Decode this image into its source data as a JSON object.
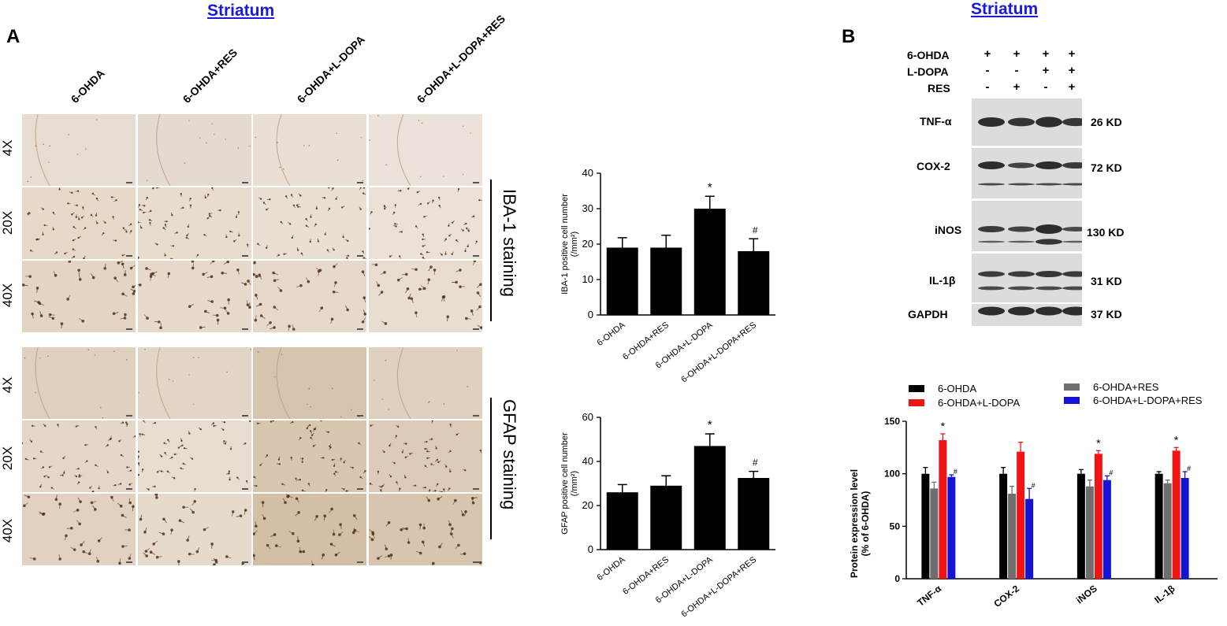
{
  "panel_a": {
    "title": "Striatum",
    "letter": "A",
    "columns": [
      "6-OHDA",
      "6-OHDA+RES",
      "6-OHDA+L-DOPA",
      "6-OHDA+L-DOPA+RES"
    ],
    "rows": [
      "4X",
      "20X",
      "40X"
    ],
    "stain_labels": [
      "IBA-1 staining",
      "GFAP staining"
    ]
  },
  "panel_b": {
    "title": "Striatum",
    "letter": "B",
    "treatment_rows": [
      {
        "label": "6-OHDA",
        "signs": [
          "+",
          "+",
          "+",
          "+"
        ]
      },
      {
        "label": "L-DOPA",
        "signs": [
          "-",
          "-",
          "+",
          "+"
        ]
      },
      {
        "label": "RES",
        "signs": [
          "-",
          "+",
          "-",
          "+"
        ]
      }
    ],
    "blots": [
      {
        "protein": "TNF-α",
        "size": "26 KD"
      },
      {
        "protein": "COX-2",
        "size": "72 KD"
      },
      {
        "protein": "iNOS",
        "size": "130 KD"
      },
      {
        "protein": "IL-1β",
        "size": "31 KD"
      },
      {
        "protein": "GAPDH",
        "size": "37 KD"
      }
    ]
  },
  "colors": {
    "black": "#000000",
    "gray": "#6e6e6e",
    "red": "#f01414",
    "blue": "#1414d2",
    "title_blue": "#1a1adb"
  },
  "chart_data": [
    {
      "type": "bar",
      "categories": [
        "6-OHDA",
        "6-OHDA+RES",
        "6-OHDA+L-DOPA",
        "6-OHDA+L-DOPA+RES"
      ],
      "values": [
        19,
        19,
        30,
        18
      ],
      "errors": [
        2.8,
        3.5,
        3.5,
        3.5
      ],
      "annotations": [
        "",
        "",
        "*",
        "#"
      ],
      "ylabel": "IBA-1 positive cell number",
      "yunit": "(/mm²)",
      "ylim": [
        0,
        40
      ],
      "yticks": [
        0,
        10,
        20,
        30,
        40
      ]
    },
    {
      "type": "bar",
      "categories": [
        "6-OHDA",
        "6-OHDA+RES",
        "6-OHDA+L-DOPA",
        "6-OHDA+L-DOPA+RES"
      ],
      "values": [
        26,
        29,
        47,
        32.5
      ],
      "errors": [
        3.5,
        4.5,
        5.5,
        3
      ],
      "annotations": [
        "",
        "",
        "*",
        "#"
      ],
      "ylabel": "GFAP positive cell number",
      "yunit": "(/mm²)",
      "ylim": [
        0,
        60
      ],
      "yticks": [
        0,
        20,
        40,
        60
      ]
    },
    {
      "type": "bar",
      "categories": [
        "TNF-α",
        "COX-2",
        "iNOS",
        "IL-1β"
      ],
      "series": [
        {
          "name": "6-OHDA",
          "color": "#000000",
          "values": [
            100,
            100,
            100,
            100
          ],
          "errors": [
            6,
            6,
            4,
            2
          ],
          "annotations": [
            "",
            "",
            "",
            ""
          ]
        },
        {
          "name": "6-OHDA+RES",
          "color": "#6e6e6e",
          "values": [
            86,
            81,
            88,
            91
          ],
          "errors": [
            6,
            7,
            6,
            3
          ],
          "annotations": [
            "",
            "",
            "",
            ""
          ]
        },
        {
          "name": "6-OHDA+L-DOPA",
          "color": "#f01414",
          "values": [
            132,
            121,
            119,
            122
          ],
          "errors": [
            6,
            9,
            3,
            3
          ],
          "annotations": [
            "*",
            "",
            "*",
            "*"
          ]
        },
        {
          "name": "6-OHDA+L-DOPA+RES",
          "color": "#1414d2",
          "values": [
            97,
            76,
            94,
            96
          ],
          "errors": [
            2,
            10,
            4,
            6
          ],
          "annotations": [
            "#",
            "#",
            "#",
            "#"
          ]
        }
      ],
      "ylabel": "Protein expression level",
      "ylabel2": "(% of 6-OHDA)",
      "ylim": [
        0,
        150
      ],
      "yticks": [
        0,
        50,
        100,
        150
      ],
      "legend": "top"
    }
  ]
}
